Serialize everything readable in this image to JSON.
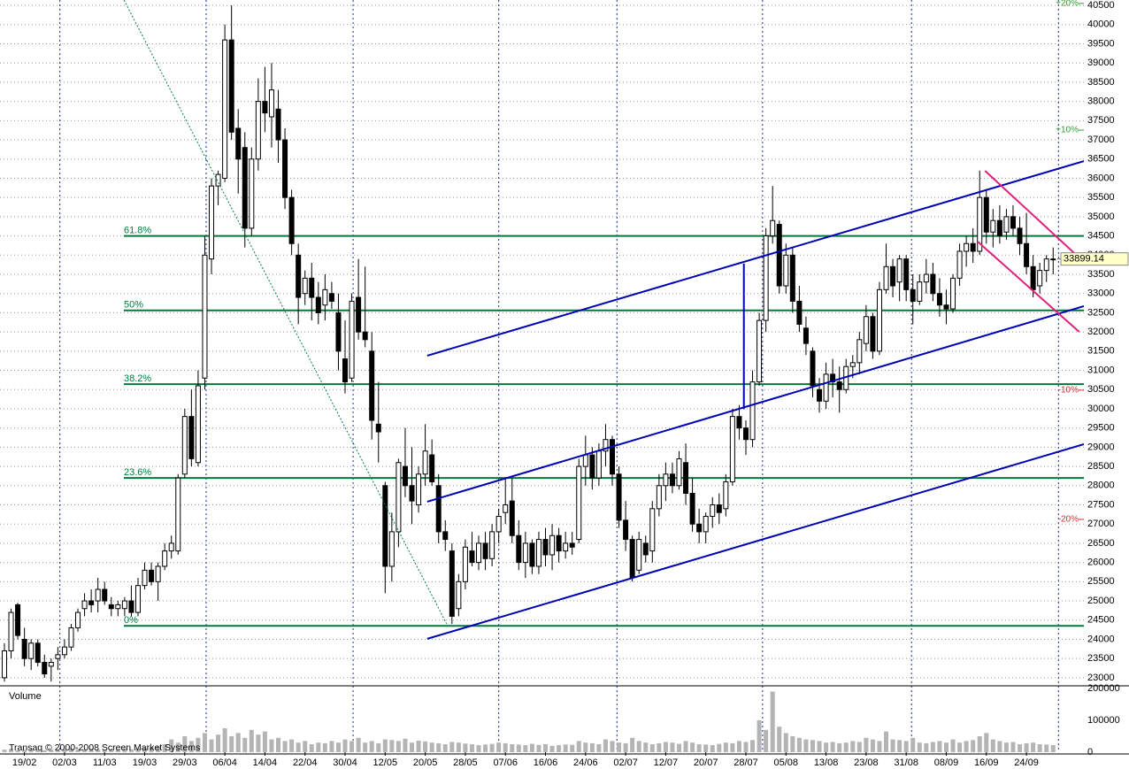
{
  "chart_data": {
    "type": "candlestick",
    "xlim": [
      -0.66,
      161.6
    ],
    "ylim": [
      22790,
      40640
    ],
    "yticks": [
      23000,
      23500,
      24000,
      24500,
      25000,
      25500,
      26000,
      26500,
      27000,
      27500,
      28000,
      28500,
      29000,
      29500,
      30000,
      30500,
      31000,
      31500,
      32000,
      32500,
      33000,
      33500,
      34000,
      34500,
      35000,
      35500,
      36000,
      36500,
      37000,
      37500,
      38000,
      38500,
      39000,
      39500,
      40000,
      40500
    ],
    "xticks": [
      {
        "value": 3,
        "label": "19/02"
      },
      {
        "value": 9,
        "label": "02/03"
      },
      {
        "value": 15,
        "label": "11/03"
      },
      {
        "value": 21,
        "label": "19/03"
      },
      {
        "value": 27,
        "label": "29/03"
      },
      {
        "value": 33,
        "label": "06/04"
      },
      {
        "value": 39,
        "label": "14/04"
      },
      {
        "value": 45,
        "label": "22/04"
      },
      {
        "value": 51,
        "label": "30/04"
      },
      {
        "value": 57,
        "label": "12/05"
      },
      {
        "value": 63,
        "label": "20/05"
      },
      {
        "value": 69,
        "label": "28/05"
      },
      {
        "value": 75,
        "label": "07/06"
      },
      {
        "value": 81,
        "label": "16/06"
      },
      {
        "value": 87,
        "label": "24/06"
      },
      {
        "value": 93,
        "label": "02/07"
      },
      {
        "value": 99,
        "label": "12/07"
      },
      {
        "value": 105,
        "label": "20/07"
      },
      {
        "value": 111,
        "label": "28/07"
      },
      {
        "value": 117,
        "label": "05/08"
      },
      {
        "value": 123,
        "label": "13/08"
      },
      {
        "value": 129,
        "label": "23/08"
      },
      {
        "value": 135,
        "label": "31/08"
      },
      {
        "value": 141,
        "label": "08/09"
      },
      {
        "value": 147,
        "label": "16/09"
      },
      {
        "value": 153,
        "label": "24/09"
      }
    ],
    "month_lines": [
      8.3,
      30.2,
      52.2,
      74.0,
      91.7,
      113.5,
      135.8,
      157.8
    ],
    "grid": true,
    "up_color": "#ffffff",
    "down_color": "#000000",
    "ohlc": [
      [
        23000,
        23900,
        22900,
        23700
      ],
      [
        23700,
        24800,
        23500,
        24700
      ],
      [
        24900,
        24950,
        24000,
        24100
      ],
      [
        24000,
        24300,
        23300,
        23500
      ],
      [
        23500,
        24000,
        23200,
        23900
      ],
      [
        23900,
        24000,
        23300,
        23400
      ],
      [
        23400,
        23600,
        23000,
        23100
      ],
      [
        23300,
        23500,
        22900,
        23400
      ],
      [
        23500,
        23800,
        23200,
        23600
      ],
      [
        23600,
        24000,
        23500,
        23800
      ],
      [
        23800,
        24400,
        23700,
        24300
      ],
      [
        24300,
        24800,
        24200,
        24700
      ],
      [
        24800,
        25200,
        24600,
        25000
      ],
      [
        25000,
        25300,
        24700,
        24900
      ],
      [
        25000,
        25600,
        24700,
        25300
      ],
      [
        25300,
        25500,
        24900,
        25000
      ],
      [
        24900,
        25100,
        24600,
        24800
      ],
      [
        24800,
        25000,
        24600,
        24900
      ],
      [
        24800,
        25100,
        24600,
        25000
      ],
      [
        25000,
        25400,
        24600,
        24700
      ],
      [
        24700,
        25600,
        24600,
        25400
      ],
      [
        25400,
        26000,
        25300,
        25800
      ],
      [
        25800,
        26000,
        25400,
        25500
      ],
      [
        25500,
        26000,
        25000,
        25900
      ],
      [
        25900,
        26500,
        25800,
        26300
      ],
      [
        26300,
        26700,
        26100,
        26500
      ],
      [
        26300,
        28300,
        26200,
        28200
      ],
      [
        28300,
        30000,
        28200,
        29800
      ],
      [
        29800,
        30500,
        28500,
        28700
      ],
      [
        28600,
        31000,
        28500,
        30600
      ],
      [
        30800,
        34500,
        30500,
        34000
      ],
      [
        33900,
        36000,
        33500,
        35800
      ],
      [
        35800,
        36200,
        35300,
        36100
      ],
      [
        36000,
        40000,
        35900,
        39600
      ],
      [
        39600,
        40500,
        37000,
        37200
      ],
      [
        37300,
        37800,
        35600,
        36500
      ],
      [
        36800,
        37200,
        34200,
        34700
      ],
      [
        34700,
        36800,
        34500,
        36500
      ],
      [
        36500,
        38600,
        36200,
        38000
      ],
      [
        38000,
        38900,
        37200,
        37700
      ],
      [
        37600,
        39000,
        36800,
        38300
      ],
      [
        37800,
        38300,
        36400,
        37000
      ],
      [
        37000,
        37300,
        35200,
        35500
      ],
      [
        35500,
        35700,
        34000,
        34300
      ],
      [
        34000,
        34300,
        32200,
        32900
      ],
      [
        33000,
        33600,
        32700,
        33400
      ],
      [
        33400,
        33800,
        32300,
        32900
      ],
      [
        32900,
        33300,
        32200,
        32500
      ],
      [
        32700,
        33500,
        32300,
        33100
      ],
      [
        33000,
        33300,
        32600,
        32800
      ],
      [
        32500,
        33000,
        31000,
        31500
      ],
      [
        31300,
        32300,
        30400,
        30700
      ],
      [
        30800,
        33000,
        30700,
        32800
      ],
      [
        32900,
        33900,
        31800,
        32000
      ],
      [
        32000,
        33700,
        31600,
        31800
      ],
      [
        31500,
        32000,
        29200,
        29700
      ],
      [
        29600,
        30700,
        28600,
        29400
      ],
      [
        28000,
        28100,
        25200,
        25900
      ],
      [
        25900,
        27300,
        25500,
        26800
      ],
      [
        26800,
        28700,
        26400,
        28600
      ],
      [
        28500,
        29500,
        27700,
        28000
      ],
      [
        28000,
        29000,
        27000,
        27600
      ],
      [
        27500,
        28500,
        27300,
        28300
      ],
      [
        28300,
        29600,
        28000,
        28900
      ],
      [
        28800,
        29200,
        28000,
        28100
      ],
      [
        28000,
        28300,
        26500,
        26800
      ],
      [
        26800,
        27100,
        26300,
        26600
      ],
      [
        26300,
        26500,
        24400,
        24600
      ],
      [
        24800,
        25700,
        24600,
        25500
      ],
      [
        25500,
        26600,
        25300,
        26400
      ],
      [
        26300,
        26800,
        25900,
        26000
      ],
      [
        26000,
        26700,
        25800,
        26500
      ],
      [
        26500,
        26800,
        25800,
        26100
      ],
      [
        26100,
        27000,
        25900,
        26800
      ],
      [
        26800,
        27400,
        26500,
        27200
      ],
      [
        27300,
        28200,
        27000,
        27500
      ],
      [
        27600,
        28200,
        26500,
        26700
      ],
      [
        26700,
        27100,
        25800,
        26000
      ],
      [
        26000,
        26800,
        25600,
        26500
      ],
      [
        26500,
        26600,
        25700,
        25900
      ],
      [
        25900,
        26800,
        25700,
        26600
      ],
      [
        26600,
        26900,
        25900,
        26200
      ],
      [
        26200,
        27000,
        25800,
        26700
      ],
      [
        26700,
        26900,
        26000,
        26300
      ],
      [
        26300,
        26800,
        26100,
        26500
      ],
      [
        26500,
        26800,
        26200,
        26400
      ],
      [
        26600,
        28700,
        26500,
        28500
      ],
      [
        28500,
        29300,
        28000,
        28800
      ],
      [
        28800,
        29000,
        27900,
        28200
      ],
      [
        28200,
        29100,
        28000,
        28900
      ],
      [
        28900,
        29600,
        28500,
        29200
      ],
      [
        29200,
        29300,
        28000,
        28300
      ],
      [
        28300,
        28500,
        26900,
        27100
      ],
      [
        27100,
        27600,
        26300,
        26600
      ],
      [
        26600,
        26700,
        25500,
        25600
      ],
      [
        25800,
        26800,
        25700,
        26600
      ],
      [
        26500,
        26700,
        26000,
        26200
      ],
      [
        26300,
        27600,
        26000,
        27400
      ],
      [
        27400,
        28300,
        27200,
        28000
      ],
      [
        28000,
        28600,
        27600,
        28300
      ],
      [
        28300,
        28600,
        27800,
        28000
      ],
      [
        28000,
        28900,
        27900,
        28700
      ],
      [
        28600,
        29100,
        27500,
        27800
      ],
      [
        27800,
        28200,
        26800,
        27000
      ],
      [
        27000,
        27400,
        26500,
        26800
      ],
      [
        26800,
        27300,
        26500,
        27200
      ],
      [
        27200,
        27700,
        26900,
        27500
      ],
      [
        27500,
        27800,
        27000,
        27300
      ],
      [
        27400,
        28300,
        27200,
        28100
      ],
      [
        28100,
        30000,
        28000,
        29800
      ],
      [
        29800,
        30100,
        29200,
        29500
      ],
      [
        29500,
        29700,
        28800,
        29200
      ],
      [
        29200,
        31000,
        29000,
        30700
      ],
      [
        30700,
        32500,
        30600,
        32300
      ],
      [
        32300,
        34700,
        32000,
        34500
      ],
      [
        34500,
        35800,
        34300,
        34900
      ],
      [
        34800,
        34900,
        33000,
        33200
      ],
      [
        33200,
        34300,
        33000,
        34000
      ],
      [
        34000,
        34200,
        32500,
        32800
      ],
      [
        32800,
        33200,
        32000,
        32200
      ],
      [
        32100,
        32400,
        31400,
        31700
      ],
      [
        31500,
        31600,
        30300,
        30600
      ],
      [
        30500,
        30800,
        29900,
        30200
      ],
      [
        30200,
        31200,
        30000,
        30900
      ],
      [
        30900,
        31300,
        30300,
        30700
      ],
      [
        30700,
        31100,
        29900,
        30500
      ],
      [
        30500,
        31300,
        30400,
        31100
      ],
      [
        31100,
        31400,
        30800,
        31200
      ],
      [
        31200,
        32000,
        30900,
        31800
      ],
      [
        31700,
        32700,
        31500,
        32400
      ],
      [
        32400,
        32500,
        31300,
        31500
      ],
      [
        31500,
        33300,
        31400,
        33100
      ],
      [
        33100,
        34300,
        33000,
        33700
      ],
      [
        33700,
        33900,
        32900,
        33200
      ],
      [
        33300,
        34000,
        32800,
        33900
      ],
      [
        33900,
        34000,
        32800,
        33100
      ],
      [
        33100,
        33500,
        32200,
        32800
      ],
      [
        32800,
        33500,
        32700,
        33300
      ],
      [
        33300,
        33900,
        33000,
        33500
      ],
      [
        33500,
        33800,
        32800,
        33000
      ],
      [
        33000,
        33400,
        32400,
        32700
      ],
      [
        32700,
        33100,
        32200,
        32600
      ],
      [
        32600,
        33500,
        32500,
        33400
      ],
      [
        33400,
        34300,
        33200,
        34100
      ],
      [
        34100,
        34500,
        33700,
        34300
      ],
      [
        34300,
        34700,
        33800,
        34100
      ],
      [
        34100,
        36200,
        34000,
        35500
      ],
      [
        35500,
        35700,
        34300,
        34600
      ],
      [
        34600,
        35200,
        34200,
        34900
      ],
      [
        34900,
        35300,
        34300,
        34500
      ],
      [
        34600,
        35200,
        34400,
        35000
      ],
      [
        35000,
        35300,
        34500,
        34700
      ],
      [
        34700,
        35000,
        34000,
        34300
      ],
      [
        34300,
        35100,
        33500,
        33700
      ],
      [
        33700,
        34000,
        32900,
        33100
      ],
      [
        33200,
        33800,
        33000,
        33600
      ],
      [
        33600,
        34000,
        33300,
        33900
      ],
      [
        33900,
        34200,
        33500,
        33899.14
      ]
    ],
    "volume": {
      "label": "Volume",
      "color": "#b4b4b4",
      "ylim": [
        0,
        208000
      ],
      "yticks": [
        0,
        100000,
        200000
      ],
      "values": [
        8000,
        10000,
        6000,
        7000,
        9000,
        5000,
        6000,
        8000,
        7000,
        9000,
        12000,
        10000,
        9000,
        11000,
        8000,
        7000,
        9000,
        10000,
        12000,
        9000,
        11000,
        13000,
        15000,
        18000,
        25000,
        40000,
        30000,
        50000,
        35000,
        45000,
        60000,
        40000,
        55000,
        75000,
        50000,
        60000,
        45000,
        70000,
        55000,
        65000,
        40000,
        45000,
        35000,
        40000,
        30000,
        35000,
        25000,
        30000,
        28000,
        35000,
        30000,
        40000,
        35000,
        45000,
        30000,
        35000,
        28000,
        40000,
        38000,
        35000,
        42000,
        30000,
        36000,
        34000,
        30000,
        28000,
        25000,
        32000,
        30000,
        27000,
        25000,
        22000,
        24000,
        26000,
        30000,
        28000,
        25000,
        24000,
        22000,
        26000,
        23000,
        25000,
        20000,
        22000,
        24000,
        23000,
        35000,
        30000,
        28000,
        25000,
        40000,
        35000,
        30000,
        28000,
        45000,
        35000,
        30000,
        25000,
        28000,
        32000,
        30000,
        26000,
        35000,
        30000,
        25000,
        24000,
        22000,
        26000,
        30000,
        28000,
        35000,
        32000,
        38000,
        100000,
        70000,
        190000,
        80000,
        60000,
        50000,
        45000,
        40000,
        38000,
        35000,
        30000,
        32000,
        28000,
        30000,
        35000,
        32000,
        45000,
        40000,
        35000,
        65000,
        40000,
        38000,
        35000,
        45000,
        30000,
        28000,
        32000,
        35000,
        30000,
        40000,
        30000,
        35000,
        38000,
        50000,
        60000,
        40000,
        35000,
        30000,
        32000,
        25000,
        28000,
        30000,
        25000,
        24000,
        22000
      ]
    },
    "fib_color": "#007a3d",
    "fib_levels": [
      {
        "label": "61.8%",
        "value": 34500
      },
      {
        "label": "50%",
        "value": 32560
      },
      {
        "label": "38.2%",
        "value": 30640
      },
      {
        "label": "23.6%",
        "value": 28200
      },
      {
        "label": "0%",
        "value": 24350
      }
    ],
    "percent_marks": [
      {
        "label": "+20%",
        "value": 40550,
        "color": "#2e9e2e"
      },
      {
        "label": "+10%",
        "value": 37253,
        "color": "#2e9e2e"
      },
      {
        "label": "-10%",
        "value": 30484,
        "color": "#d03030"
      },
      {
        "label": "-20%",
        "value": 27122,
        "color": "#d03030"
      }
    ],
    "trendlines": [
      {
        "x": [
          63.3,
          161.6
        ],
        "y": [
          31382,
          36447
        ],
        "color": "#0000b4",
        "width": 2
      },
      {
        "x": [
          63.3,
          161.6
        ],
        "y": [
          27583,
          32671
        ],
        "color": "#0000b4",
        "width": 2
      },
      {
        "x": [
          63.3,
          161.6
        ],
        "y": [
          24014,
          29079
        ],
        "color": "#0000b4",
        "width": 2
      },
      {
        "x": [
          110.7,
          110.7
        ],
        "y": [
          33780,
          29990
        ],
        "color": "#0000b4",
        "width": 2
      },
      {
        "x": [
          146.8,
          161.6
        ],
        "y": [
          36194,
          33823
        ],
        "color": "#e0207a",
        "width": 2
      },
      {
        "x": [
          145.7,
          160.9
        ],
        "y": [
          34352,
          32004
        ],
        "color": "#e0207a",
        "width": 2
      },
      {
        "x": [
          17.9,
          66.2
        ],
        "y": [
          40638,
          24405
        ],
        "color": "#008040",
        "width": 1,
        "dash": true
      }
    ],
    "last_price": 33899.14,
    "copyright": "Transaq © 2000-2008 Screen Market Systems"
  }
}
